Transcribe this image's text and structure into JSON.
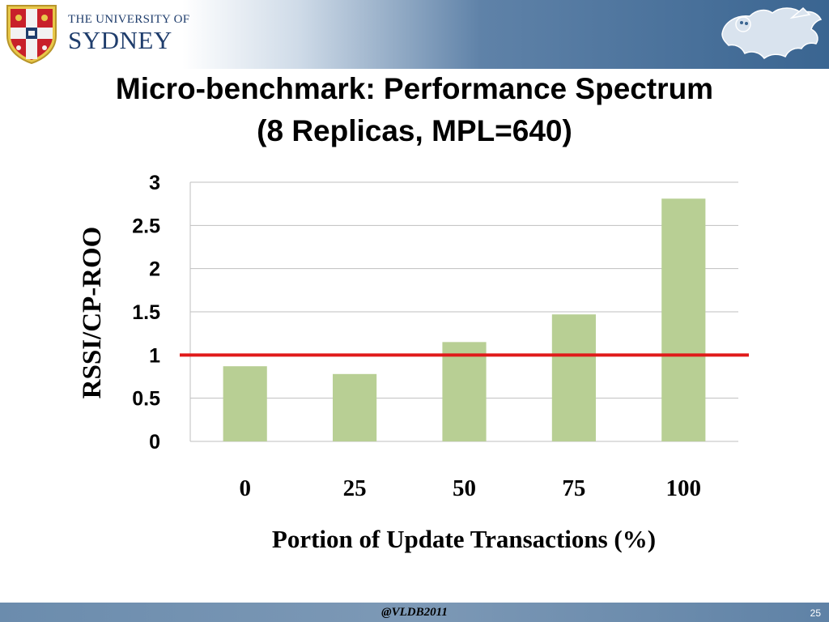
{
  "header": {
    "university_line1": "THE UNIVERSITY OF",
    "university_line2": "SYDNEY",
    "logo_icon": "university-crest-icon",
    "mascot_icon": "lion-emblem-icon"
  },
  "slide": {
    "title_line1": "Micro-benchmark: Performance Spectrum",
    "title_line2": "(8 Replicas, MPL=640)"
  },
  "chart_data": {
    "type": "bar",
    "categories": [
      "0",
      "25",
      "50",
      "75",
      "100"
    ],
    "values": [
      0.87,
      0.78,
      1.15,
      1.47,
      2.81
    ],
    "xlabel": "Portion of Update Transactions (%)",
    "ylabel": "RSSI/CP-ROO",
    "ylim": [
      0,
      3
    ],
    "yticks": [
      "0",
      "0.5",
      "1",
      "1.5",
      "2",
      "2.5",
      "3"
    ],
    "grid": true,
    "bar_color": "#b8cf94",
    "reference_line": {
      "value": 1,
      "color": "#e01a1a"
    }
  },
  "footer": {
    "venue": "@VLDB2011",
    "page_number": "25"
  }
}
